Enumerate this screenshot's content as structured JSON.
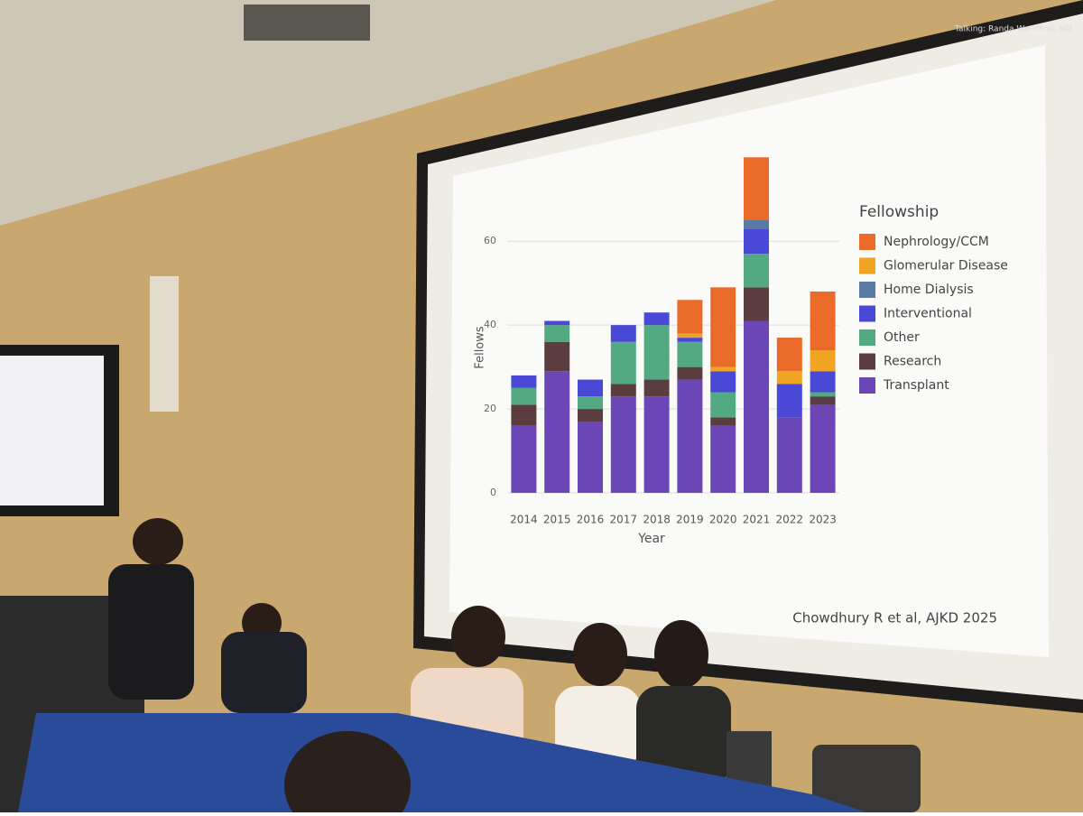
{
  "chart_data": {
    "type": "stacked_bar",
    "y_label": "Fellows",
    "x_label": "Year",
    "legend_title": "Fellowship",
    "categories": [
      "2014",
      "2015",
      "2016",
      "2017",
      "2018",
      "2019",
      "2020",
      "2021",
      "2022",
      "2023"
    ],
    "series": [
      {
        "name": "Nephrology/CCM",
        "color": "#ea6a2a",
        "values": [
          0,
          0,
          0,
          0,
          0,
          8,
          19,
          15,
          8,
          14
        ]
      },
      {
        "name": "Glomerular Disease",
        "color": "#f0a423",
        "values": [
          0,
          0,
          0,
          0,
          0,
          1,
          1,
          0,
          3,
          5
        ]
      },
      {
        "name": "Home Dialysis",
        "color": "#5a7aa6",
        "values": [
          0,
          0,
          0,
          0,
          0,
          0,
          0,
          2,
          0,
          0
        ]
      },
      {
        "name": "Interventional",
        "color": "#4a48d6",
        "values": [
          3,
          1,
          4,
          4,
          3,
          1,
          5,
          6,
          8,
          5
        ]
      },
      {
        "name": "Other",
        "color": "#52a982",
        "values": [
          4,
          4,
          3,
          10,
          13,
          6,
          6,
          8,
          0,
          1
        ]
      },
      {
        "name": "Research",
        "color": "#5b3c3f",
        "values": [
          5,
          7,
          3,
          3,
          4,
          3,
          2,
          8,
          0,
          2
        ]
      },
      {
        "name": "Transplant",
        "color": "#6b46b6",
        "values": [
          16,
          29,
          17,
          23,
          23,
          27,
          16,
          41,
          18,
          21
        ]
      }
    ],
    "ylim": [
      0,
      82
    ],
    "yticks": [
      0,
      20,
      40,
      60
    ],
    "grid": true,
    "source": "Chowdhury R et al, AJKD 2025",
    "speaker_caption": "Talking: Randa Wanchoo, MD"
  }
}
